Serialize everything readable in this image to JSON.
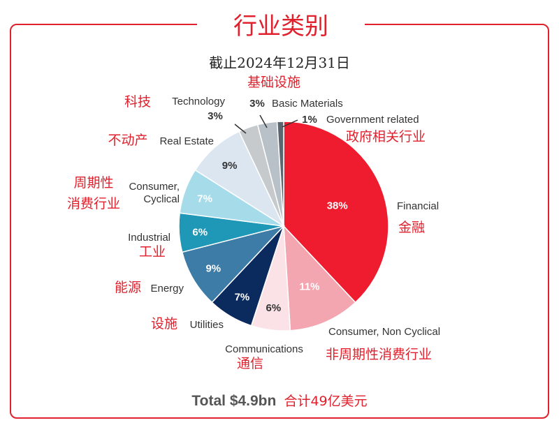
{
  "header": {
    "title": "行业类别",
    "date_label": "截止2024年12月31日"
  },
  "footer": {
    "total_en": "Total $4.9bn",
    "total_zh": "合计49亿美元"
  },
  "colors": {
    "accent": "#e0212d",
    "label_en": "#333333",
    "label_zh": "#e0212d"
  },
  "chart_data": {
    "type": "pie",
    "title": "行业类别",
    "subtitle": "截止2024年12月31日",
    "start_angle_deg": 0,
    "direction": "clockwise",
    "slices": [
      {
        "label": "Financial",
        "label_zh": "金融",
        "value": 38,
        "pct_label": "38%",
        "color": "#ee1c2e",
        "text_color": "#ffffff"
      },
      {
        "label": "Consumer, Non Cyclical",
        "label_zh": "非周期性消费行业",
        "value": 11,
        "pct_label": "11%",
        "color": "#f4a6b0",
        "text_color": "#ffffff"
      },
      {
        "label": "Communications",
        "label_zh": "通信",
        "value": 6,
        "pct_label": "6%",
        "color": "#fbe2e6",
        "text_color": "#333333"
      },
      {
        "label": "Utilities",
        "label_zh": "设施",
        "value": 7,
        "pct_label": "7%",
        "color": "#0b2a5e",
        "text_color": "#ffffff"
      },
      {
        "label": "Energy",
        "label_zh": "能源",
        "value": 9,
        "pct_label": "9%",
        "color": "#3e7ca8",
        "text_color": "#ffffff"
      },
      {
        "label": "Industrial",
        "label_zh": "工业",
        "value": 6,
        "pct_label": "6%",
        "color": "#1f97b6",
        "text_color": "#ffffff"
      },
      {
        "label": "Consumer,\nCyclical",
        "label_zh": "周期性\n消费行业",
        "value": 7,
        "pct_label": "7%",
        "color": "#a6dcea",
        "text_color": "#ffffff"
      },
      {
        "label": "Real Estate",
        "label_zh": "不动产",
        "value": 9,
        "pct_label": "9%",
        "color": "#dce6f1",
        "text_color": "#333333"
      },
      {
        "label": "Technology",
        "label_zh": "科技",
        "value": 3,
        "pct_label": "3%",
        "color": "#c7cacd",
        "text_color": "#333333"
      },
      {
        "label": "Basic Materials",
        "label_zh": "基础设施",
        "value": 3,
        "pct_label": "3%",
        "color": "#b9c1c8",
        "text_color": "#333333"
      },
      {
        "label": "Government related",
        "label_zh": "政府相关行业",
        "value": 1,
        "pct_label": "1%",
        "color": "#5b6770",
        "text_color": "#333333"
      }
    ]
  }
}
